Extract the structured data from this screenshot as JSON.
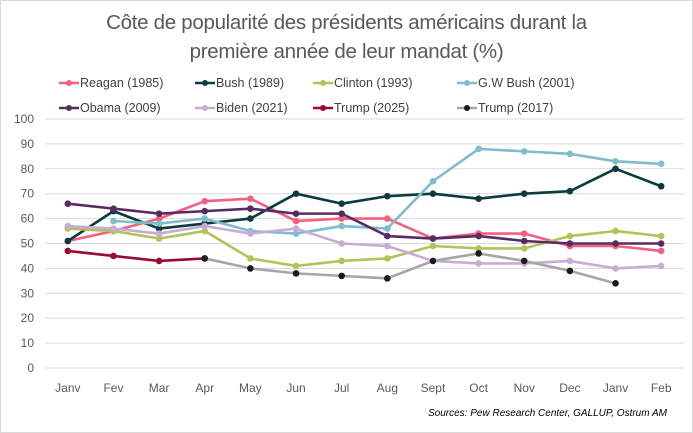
{
  "chart_data": {
    "type": "line",
    "title_line1": "Côte de popularité des présidents américains durant la",
    "title_line2": "première année de leur mandat (%)",
    "xlabel": "",
    "ylabel": "",
    "categories": [
      "Janv",
      "Fev",
      "Mar",
      "Apr",
      "May",
      "Jun",
      "Jul",
      "Aug",
      "Sept",
      "Oct",
      "Nov",
      "Dec",
      "Janv",
      "Feb"
    ],
    "ylim": [
      0,
      100
    ],
    "yticks": [
      0,
      10,
      20,
      30,
      40,
      50,
      60,
      70,
      80,
      90,
      100
    ],
    "grid": true,
    "legend_position": "top",
    "source": "Sources: Pew Research Center, GALLUP, Ostrum AM",
    "series": [
      {
        "name": "Reagan (1985)",
        "color": "#f4607f",
        "values": [
          51,
          55,
          60,
          67,
          68,
          59,
          60,
          60,
          52,
          54,
          54,
          49,
          49,
          47
        ]
      },
      {
        "name": "Bush (1989)",
        "color": "#0e3b3e",
        "values": [
          51,
          63,
          56,
          58,
          60,
          70,
          66,
          69,
          70,
          68,
          70,
          71,
          80,
          73
        ]
      },
      {
        "name": "Clinton (1993)",
        "color": "#b3c25a",
        "values": [
          56,
          55,
          52,
          55,
          44,
          41,
          43,
          44,
          49,
          48,
          48,
          53,
          55,
          53
        ]
      },
      {
        "name": "G.W Bush (2001)",
        "color": "#7fbccc",
        "values": [
          null,
          59,
          58,
          60,
          55,
          54,
          57,
          56,
          75,
          88,
          87,
          86,
          83,
          82
        ]
      },
      {
        "name": "Obama (2009)",
        "color": "#5a2a63",
        "values": [
          66,
          64,
          62,
          63,
          64,
          62,
          62,
          53,
          52,
          53,
          51,
          50,
          50,
          50
        ]
      },
      {
        "name": "Biden (2021)",
        "color": "#c9acd3",
        "values": [
          57,
          56,
          54,
          57,
          54,
          56,
          50,
          49,
          43,
          42,
          42,
          43,
          40,
          41
        ]
      },
      {
        "name": "Trump (2025)",
        "color": "#9b0a2f",
        "values": [
          47,
          45,
          43,
          44,
          null,
          null,
          null,
          null,
          null,
          null,
          null,
          null,
          null,
          null
        ]
      },
      {
        "name": "Trump (2017)",
        "color": "#a6a6a6",
        "marker_color": "#1a1a1a",
        "values": [
          null,
          null,
          null,
          44,
          40,
          38,
          37,
          36,
          43,
          46,
          43,
          39,
          34,
          null
        ]
      }
    ]
  }
}
